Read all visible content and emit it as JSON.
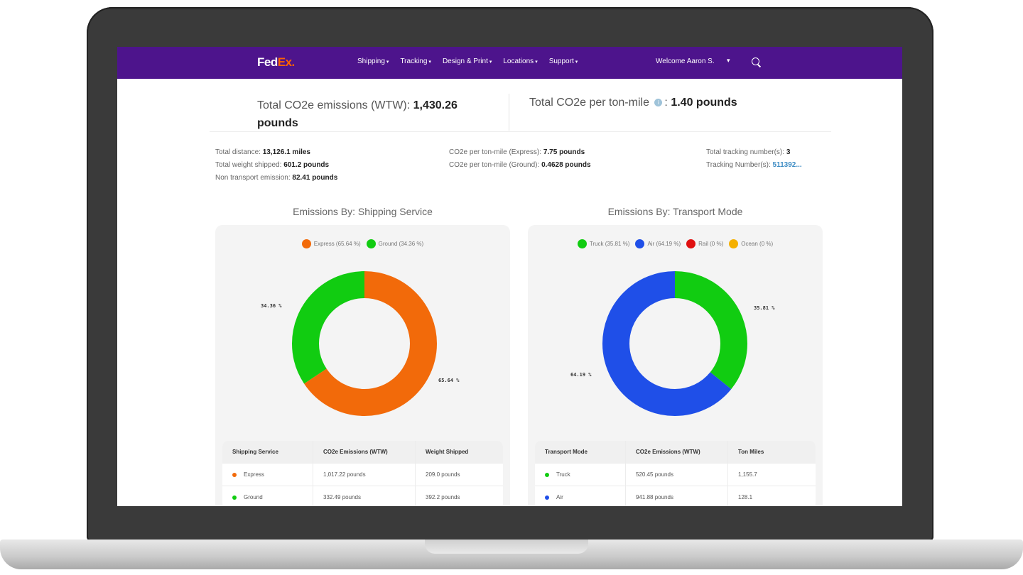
{
  "nav": {
    "logo_fed": "Fed",
    "logo_ex": "Ex.",
    "links": [
      "Shipping",
      "Tracking",
      "Design & Print",
      "Locations",
      "Support"
    ],
    "welcome": "Welcome Aaron S.",
    "colors": {
      "bar": "#4d148c",
      "logo_accent": "#ff6200"
    }
  },
  "summary": {
    "total_label": "Total CO2e emissions (WTW):",
    "total_value": "1,430.26",
    "total_unit": "pounds",
    "per_ton_label": "Total CO2e per ton-mile",
    "per_ton_sep": ":",
    "per_ton_value": "1.40 pounds"
  },
  "stats": {
    "distance_label": "Total distance:",
    "distance_value": "13,126.1 miles",
    "weight_label": "Total weight shipped:",
    "weight_value": "601.2 pounds",
    "non_transport_label": "Non transport emission:",
    "non_transport_value": "82.41 pounds",
    "express_label": "CO2e per ton-mile (Express):",
    "express_value": "7.75 pounds",
    "ground_label": "CO2e per ton-mile (Ground):",
    "ground_value": "0.4628 pounds",
    "tracking_count_label": "Total tracking number(s):",
    "tracking_count_value": "3",
    "tracking_numbers_label": "Tracking Number(s):",
    "tracking_numbers_value": "511392..."
  },
  "shipping_chart": {
    "title": "Emissions By: Shipping Service",
    "legend": [
      "Express (65.64 %)",
      "Ground (34.36 %)"
    ],
    "label_ground": "34.36 %",
    "label_express": "65.64 %",
    "table_headers": [
      "Shipping Service",
      "CO2e Emissions (WTW)",
      "Weight Shipped"
    ],
    "rows": [
      {
        "name": "Express",
        "emissions": "1,017.22 pounds",
        "weight": "209.0 pounds"
      },
      {
        "name": "Ground",
        "emissions": "332.49 pounds",
        "weight": "392.2 pounds"
      }
    ]
  },
  "transport_chart": {
    "title": "Emissions By: Transport Mode",
    "legend": [
      "Truck (35.81 %)",
      "Air (64.19 %)",
      "Rail (0 %)",
      "Ocean (0 %)"
    ],
    "label_truck": "35.81 %",
    "label_air": "64.19 %",
    "table_headers": [
      "Transport Mode",
      "CO2e Emissions (WTW)",
      "Ton Miles"
    ],
    "rows": [
      {
        "name": "Truck",
        "emissions": "520.45 pounds",
        "ton_miles": "1,155.7"
      },
      {
        "name": "Air",
        "emissions": "941.88 pounds",
        "ton_miles": "128.1"
      }
    ]
  },
  "chart_data": [
    {
      "type": "pie",
      "title": "Emissions By: Shipping Service",
      "categories": [
        "Express",
        "Ground"
      ],
      "values": [
        65.64,
        34.36
      ],
      "colors": [
        "#f26a0a",
        "#11cc11"
      ],
      "legend": "top"
    },
    {
      "type": "pie",
      "title": "Emissions By: Transport Mode",
      "categories": [
        "Truck",
        "Air",
        "Rail",
        "Ocean"
      ],
      "values": [
        35.81,
        64.19,
        0,
        0
      ],
      "colors": [
        "#11cc11",
        "#1f4fe8",
        "#e01010",
        "#f5b000"
      ],
      "legend": "top"
    }
  ]
}
